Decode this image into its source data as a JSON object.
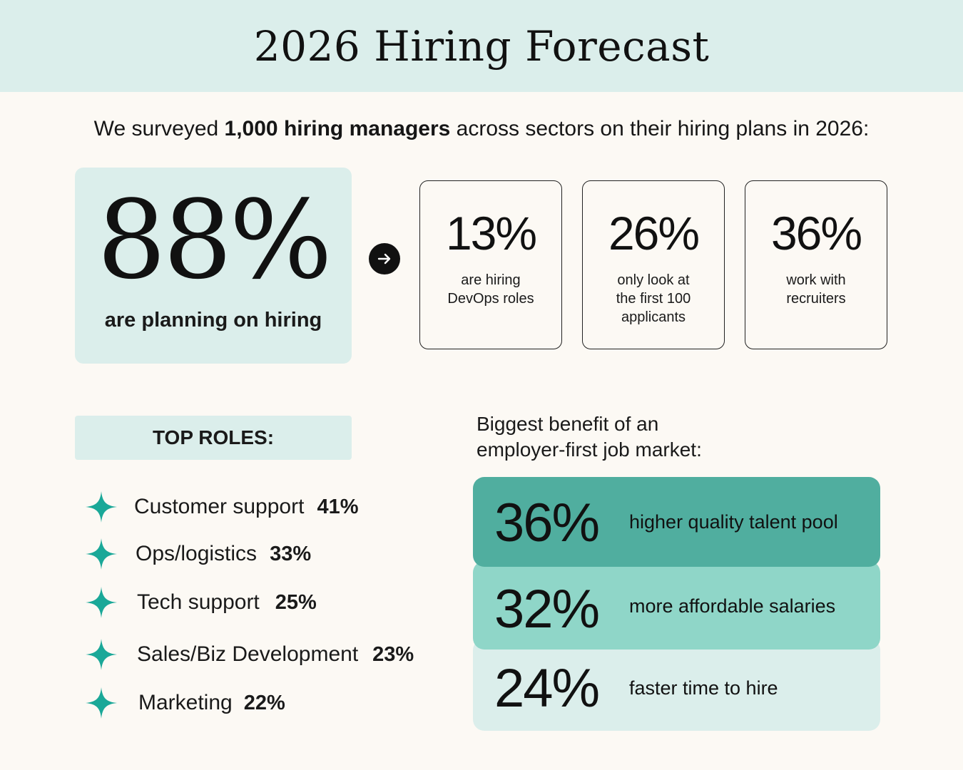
{
  "header": {
    "title": "2026 Hiring Forecast"
  },
  "intro": {
    "prefix": "We surveyed ",
    "bold": "1,000 hiring managers",
    "suffix": " across sectors on their hiring plans in 2026:"
  },
  "hero": {
    "value": "88%",
    "caption": "are planning on hiring"
  },
  "stats": [
    {
      "value": "13%",
      "line1": "are hiring",
      "line2": "DevOps roles",
      "line3": ""
    },
    {
      "value": "26%",
      "line1": "only look at",
      "line2": "the first 100",
      "line3": "applicants"
    },
    {
      "value": "36%",
      "line1": "work with",
      "line2": "recruiters",
      "line3": ""
    }
  ],
  "roles": {
    "title": "TOP ROLES:",
    "items": [
      {
        "name": "Customer support",
        "pct": "41%"
      },
      {
        "name": "Ops/logistics",
        "pct": "33%"
      },
      {
        "name": "Tech support",
        "pct": "25%"
      },
      {
        "name": "Sales/Biz Development",
        "pct": "23%"
      },
      {
        "name": "Marketing",
        "pct": "22%"
      }
    ]
  },
  "benefits": {
    "title_line1": "Biggest benefit of an",
    "title_line2": "employer-first job market:",
    "items": [
      {
        "value": "36%",
        "label": "higher quality talent pool",
        "color": "#50ae9f"
      },
      {
        "value": "32%",
        "label": "more affordable salaries",
        "color": "#8fd6c8"
      },
      {
        "value": "24%",
        "label": "faster time to hire",
        "color": "#dbeeeb"
      }
    ]
  },
  "colors": {
    "accent": "#1aa898",
    "panel": "#dbeeeb",
    "background": "#fcf9f4"
  },
  "icons": {
    "arrow": "arrow-right-icon",
    "bullet": "sparkle-star-icon"
  }
}
